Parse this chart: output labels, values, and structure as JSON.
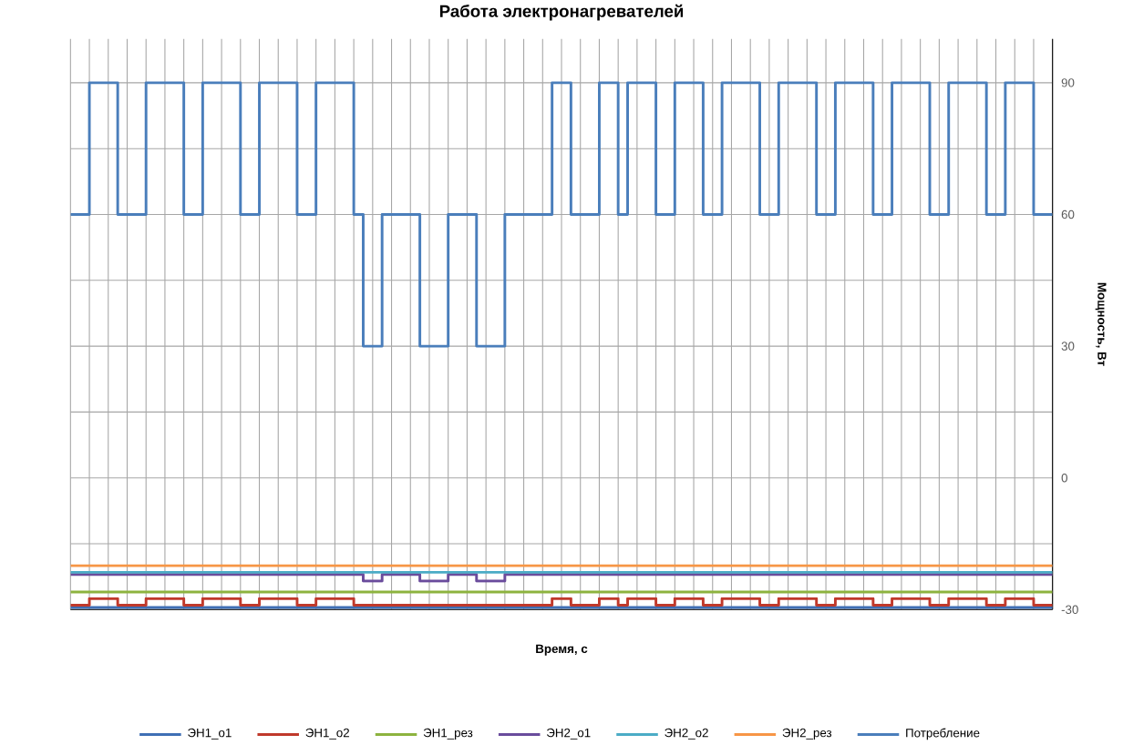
{
  "chart_data": {
    "type": "step",
    "title": "Работа электронагревателей",
    "xlabel": "Время, с",
    "ylabel": "Мощность, Вт",
    "categories": [
      null,
      null,
      null,
      null,
      null,
      null,
      null,
      null,
      null,
      null,
      null,
      null,
      null,
      null,
      null,
      null,
      null,
      null,
      null,
      null,
      null,
      null,
      null,
      null,
      null,
      null,
      null,
      null,
      null,
      null,
      null,
      null,
      null,
      null,
      null,
      null,
      null,
      null,
      null,
      null,
      null,
      null,
      null,
      null,
      null,
      null,
      null,
      null,
      null,
      null,
      null,
      null,
      null,
      null,
      null,
      null,
      null,
      null,
      null,
      null,
      null,
      null,
      null,
      null,
      null,
      null,
      null,
      null,
      null,
      null,
      null,
      null,
      null,
      null,
      null,
      null,
      null,
      null,
      null,
      null,
      null,
      null,
      null,
      null,
      null,
      null,
      null,
      null,
      null,
      null,
      null,
      null,
      null,
      null,
      null,
      null,
      null,
      null,
      null,
      null,
      null,
      null,
      null,
      null,
      null
    ],
    "ylim": [
      -30,
      100
    ],
    "yticks": [
      -30,
      {
        "value": -15,
        "label": null
      },
      0,
      {
        "value": 15,
        "label": null
      },
      30,
      {
        "value": 45,
        "label": null
      },
      60,
      {
        "value": 75,
        "label": null
      },
      90
    ],
    "tick_labels": "y",
    "grid": true,
    "legend": "bottom",
    "marker": "none",
    "line_style": "solid",
    "series": [
      {
        "name": "ЭН1_о1",
        "color": "#3f6fb5",
        "values": [
          -29.5,
          -29.5,
          -29.5,
          -29.5,
          -29.5,
          -29.5,
          -29.5,
          -29.5,
          -29.5,
          -29.5,
          -29.5,
          -29.5,
          -29.5,
          -29.5,
          -29.5,
          -29.5,
          -29.5,
          -29.5,
          -29.5,
          -29.5,
          -29.5,
          -29.5,
          -29.5,
          -29.5,
          -29.5,
          -29.5,
          -29.5,
          -29.5,
          -29.5,
          -29.5,
          -29.5,
          -29.5,
          -29.5,
          -29.5,
          -29.5,
          -29.5,
          -29.5,
          -29.5,
          -29.5,
          -29.5,
          -29.5,
          -29.5,
          -29.5,
          -29.5,
          -29.5,
          -29.5,
          -29.5,
          -29.5,
          -29.5,
          -29.5,
          -29.5,
          -29.5,
          -29.5,
          -29.5,
          -29.5,
          -29.5,
          -29.5,
          -29.5,
          -29.5,
          -29.5,
          -29.5,
          -29.5,
          -29.5,
          -29.5,
          -29.5,
          -29.5,
          -29.5,
          -29.5,
          -29.5,
          -29.5,
          -29.5,
          -29.5,
          -29.5,
          -29.5,
          -29.5,
          -29.5,
          -29.5,
          -29.5,
          -29.5,
          -29.5,
          -29.5,
          -29.5,
          -29.5,
          -29.5,
          -29.5,
          -29.5,
          -29.5,
          -29.5,
          -29.5,
          -29.5,
          -29.5,
          -29.5,
          -29.5,
          -29.5,
          -29.5,
          -29.5,
          -29.5,
          -29.5,
          -29.5,
          -29.5,
          -29.5,
          -29.5,
          -29.5,
          -29.5,
          -29.5
        ]
      },
      {
        "name": "ЭН1_о2",
        "color": "#c0392b",
        "values": [
          -29,
          -29,
          -27.5,
          -27.5,
          -27.5,
          -29,
          -29,
          -29,
          -27.5,
          -27.5,
          -27.5,
          -27.5,
          -29,
          -29,
          -27.5,
          -27.5,
          -27.5,
          -27.5,
          -29,
          -29,
          -27.5,
          -27.5,
          -27.5,
          -27.5,
          -29,
          -29,
          -27.5,
          -27.5,
          -27.5,
          -27.5,
          -29,
          -29,
          -29,
          -29,
          -29,
          -29,
          -29,
          -29,
          -29,
          -29,
          -29,
          -29,
          -29,
          -29,
          -29,
          -29,
          -29,
          -29,
          -29,
          -29,
          -29,
          -27.5,
          -27.5,
          -29,
          -29,
          -29,
          -27.5,
          -27.5,
          -29,
          -27.5,
          -27.5,
          -27.5,
          -29,
          -29,
          -27.5,
          -27.5,
          -27.5,
          -29,
          -29,
          -27.5,
          -27.5,
          -27.5,
          -27.5,
          -29,
          -29,
          -27.5,
          -27.5,
          -27.5,
          -27.5,
          -29,
          -29,
          -27.5,
          -27.5,
          -27.5,
          -27.5,
          -29,
          -29,
          -27.5,
          -27.5,
          -27.5,
          -27.5,
          -29,
          -29,
          -27.5,
          -27.5,
          -27.5,
          -27.5,
          -29,
          -29,
          -27.5,
          -27.5,
          -27.5,
          -29,
          -29,
          -29
        ]
      },
      {
        "name": "ЭН1_рез",
        "color": "#8db33f",
        "values": [
          -26,
          -26,
          -26,
          -26,
          -26,
          -26,
          -26,
          -26,
          -26,
          -26,
          -26,
          -26,
          -26,
          -26,
          -26,
          -26,
          -26,
          -26,
          -26,
          -26,
          -26,
          -26,
          -26,
          -26,
          -26,
          -26,
          -26,
          -26,
          -26,
          -26,
          -26,
          -26,
          -26,
          -26,
          -26,
          -26,
          -26,
          -26,
          -26,
          -26,
          -26,
          -26,
          -26,
          -26,
          -26,
          -26,
          -26,
          -26,
          -26,
          -26,
          -26,
          -26,
          -26,
          -26,
          -26,
          -26,
          -26,
          -26,
          -26,
          -26,
          -26,
          -26,
          -26,
          -26,
          -26,
          -26,
          -26,
          -26,
          -26,
          -26,
          -26,
          -26,
          -26,
          -26,
          -26,
          -26,
          -26,
          -26,
          -26,
          -26,
          -26,
          -26,
          -26,
          -26,
          -26,
          -26,
          -26,
          -26,
          -26,
          -26,
          -26,
          -26,
          -26,
          -26,
          -26,
          -26,
          -26,
          -26,
          -26,
          -26,
          -26,
          -26,
          -26,
          -26,
          -26
        ]
      },
      {
        "name": "ЭН2_о1",
        "color": "#6a4c9c",
        "values": [
          -22,
          -22,
          -22,
          -22,
          -22,
          -22,
          -22,
          -22,
          -22,
          -22,
          -22,
          -22,
          -22,
          -22,
          -22,
          -22,
          -22,
          -22,
          -22,
          -22,
          -22,
          -22,
          -22,
          -22,
          -22,
          -22,
          -22,
          -22,
          -22,
          -22,
          -22,
          -23.5,
          -23.5,
          -22,
          -22,
          -22,
          -22,
          -23.5,
          -23.5,
          -23.5,
          -22,
          -22,
          -22,
          -23.5,
          -23.5,
          -23.5,
          -22,
          -22,
          -22,
          -22,
          -22,
          -22,
          -22,
          -22,
          -22,
          -22,
          -22,
          -22,
          -22,
          -22,
          -22,
          -22,
          -22,
          -22,
          -22,
          -22,
          -22,
          -22,
          -22,
          -22,
          -22,
          -22,
          -22,
          -22,
          -22,
          -22,
          -22,
          -22,
          -22,
          -22,
          -22,
          -22,
          -22,
          -22,
          -22,
          -22,
          -22,
          -22,
          -22,
          -22,
          -22,
          -22,
          -22,
          -22,
          -22,
          -22,
          -22,
          -22,
          -22,
          -22,
          -22,
          -22,
          -22,
          -22,
          -22
        ]
      },
      {
        "name": "ЭН2_о2",
        "color": "#4bacc6",
        "values": [
          -21.5,
          -21.5,
          -21.5,
          -21.5,
          -21.5,
          -21.5,
          -21.5,
          -21.5,
          -21.5,
          -21.5,
          -21.5,
          -21.5,
          -21.5,
          -21.5,
          -21.5,
          -21.5,
          -21.5,
          -21.5,
          -21.5,
          -21.5,
          -21.5,
          -21.5,
          -21.5,
          -21.5,
          -21.5,
          -21.5,
          -21.5,
          -21.5,
          -21.5,
          -21.5,
          -21.5,
          -21.5,
          -21.5,
          -21.5,
          -21.5,
          -21.5,
          -21.5,
          -21.5,
          -21.5,
          -21.5,
          -21.5,
          -21.5,
          -21.5,
          -21.5,
          -21.5,
          -21.5,
          -21.5,
          -21.5,
          -21.5,
          -21.5,
          -21.5,
          -21.5,
          -21.5,
          -21.5,
          -21.5,
          -21.5,
          -21.5,
          -21.5,
          -21.5,
          -21.5,
          -21.5,
          -21.5,
          -21.5,
          -21.5,
          -21.5,
          -21.5,
          -21.5,
          -21.5,
          -21.5,
          -21.5,
          -21.5,
          -21.5,
          -21.5,
          -21.5,
          -21.5,
          -21.5,
          -21.5,
          -21.5,
          -21.5,
          -21.5,
          -21.5,
          -21.5,
          -21.5,
          -21.5,
          -21.5,
          -21.5,
          -21.5,
          -21.5,
          -21.5,
          -21.5,
          -21.5,
          -21.5,
          -21.5,
          -21.5,
          -21.5,
          -21.5,
          -21.5,
          -21.5,
          -21.5,
          -21.5,
          -21.5,
          -21.5,
          -21.5,
          -21.5,
          -21.5
        ]
      },
      {
        "name": "ЭН2_рез",
        "color": "#f79646",
        "values": [
          -20,
          -20,
          -20,
          -20,
          -20,
          -20,
          -20,
          -20,
          -20,
          -20,
          -20,
          -20,
          -20,
          -20,
          -20,
          -20,
          -20,
          -20,
          -20,
          -20,
          -20,
          -20,
          -20,
          -20,
          -20,
          -20,
          -20,
          -20,
          -20,
          -20,
          -20,
          -20,
          -20,
          -20,
          -20,
          -20,
          -20,
          -20,
          -20,
          -20,
          -20,
          -20,
          -20,
          -20,
          -20,
          -20,
          -20,
          -20,
          -20,
          -20,
          -20,
          -20,
          -20,
          -20,
          -20,
          -20,
          -20,
          -20,
          -20,
          -20,
          -20,
          -20,
          -20,
          -20,
          -20,
          -20,
          -20,
          -20,
          -20,
          -20,
          -20,
          -20,
          -20,
          -20,
          -20,
          -20,
          -20,
          -20,
          -20,
          -20,
          -20,
          -20,
          -20,
          -20,
          -20,
          -20,
          -20,
          -20,
          -20,
          -20,
          -20,
          -20,
          -20,
          -20,
          -20,
          -20,
          -20,
          -20,
          -20,
          -20,
          -20,
          -20,
          -20,
          -20,
          -20
        ]
      },
      {
        "name": "Потребление",
        "color": "#4a7ebb",
        "values": [
          60,
          60,
          90,
          90,
          90,
          60,
          60,
          60,
          90,
          90,
          90,
          90,
          60,
          60,
          90,
          90,
          90,
          90,
          60,
          60,
          90,
          90,
          90,
          90,
          60,
          60,
          90,
          90,
          90,
          90,
          60,
          30,
          30,
          60,
          60,
          60,
          60,
          30,
          30,
          30,
          60,
          60,
          60,
          30,
          30,
          30,
          60,
          60,
          60,
          60,
          60,
          90,
          90,
          60,
          60,
          60,
          90,
          90,
          60,
          90,
          90,
          90,
          60,
          60,
          90,
          90,
          90,
          60,
          60,
          90,
          90,
          90,
          90,
          60,
          60,
          90,
          90,
          90,
          90,
          60,
          60,
          90,
          90,
          90,
          90,
          60,
          60,
          90,
          90,
          90,
          90,
          60,
          60,
          90,
          90,
          90,
          90,
          60,
          60,
          90,
          90,
          90,
          60,
          60,
          60
        ]
      }
    ]
  }
}
